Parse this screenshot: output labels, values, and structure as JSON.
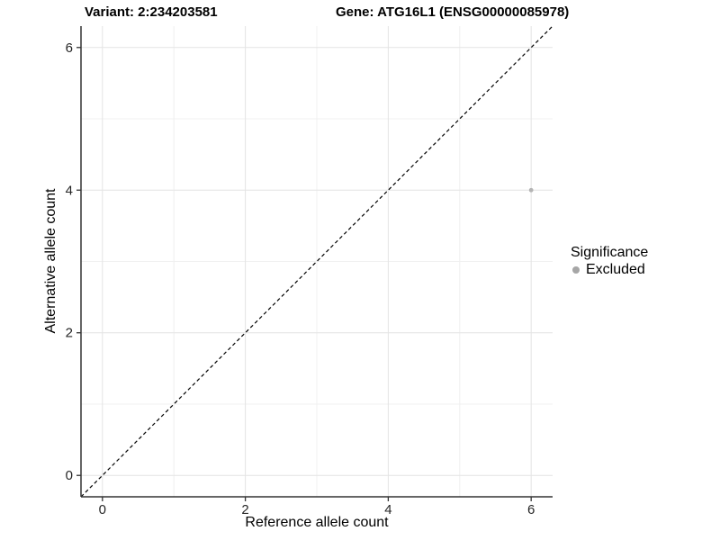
{
  "chart_data": {
    "type": "scatter",
    "title_left": "Variant: 2:234203581",
    "title_right": "Gene: ATG16L1 (ENSG00000085978)",
    "xlabel": "Reference allele count",
    "ylabel": "Alternative allele count",
    "xlim": [
      -0.3,
      6.3
    ],
    "ylim": [
      -0.3,
      6.3
    ],
    "x_ticks": [
      0,
      2,
      4,
      6
    ],
    "y_ticks": [
      0,
      2,
      4,
      6
    ],
    "x_minor_ticks": [
      1,
      3,
      5
    ],
    "y_minor_ticks": [
      1,
      3,
      5
    ],
    "grid": true,
    "identity_line": {
      "style": "dashed",
      "color": "#000000",
      "from": [
        -0.3,
        -0.3
      ],
      "to": [
        6.3,
        6.3
      ]
    },
    "series": [
      {
        "name": "Excluded",
        "color": "#b4b4b4",
        "points": [
          {
            "x": 6,
            "y": 4
          }
        ]
      }
    ],
    "legend": {
      "position": "right",
      "title": "Significance",
      "items": [
        {
          "label": "Excluded",
          "color": "#a6a6a6"
        }
      ]
    }
  }
}
